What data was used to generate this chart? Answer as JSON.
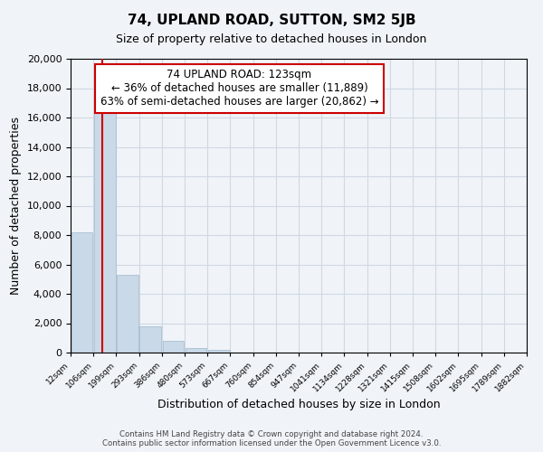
{
  "title": "74, UPLAND ROAD, SUTTON, SM2 5JB",
  "subtitle": "Size of property relative to detached houses in London",
  "xlabel": "Distribution of detached houses by size in London",
  "ylabel": "Number of detached properties",
  "bar_color": "#c9d9e8",
  "bar_edge_color": "#a0b8cc",
  "property_line_color": "#cc0000",
  "annotation_box_edge_color": "#cc0000",
  "annotation_box_face_color": "#ffffff",
  "grid_color": "#d0d8e4",
  "background_color": "#f0f4f8",
  "bin_edges": [
    "12sqm",
    "106sqm",
    "199sqm",
    "293sqm",
    "386sqm",
    "480sqm",
    "573sqm",
    "667sqm",
    "760sqm",
    "854sqm",
    "947sqm",
    "1041sqm",
    "1134sqm",
    "1228sqm",
    "1321sqm",
    "1415sqm",
    "1508sqm",
    "1602sqm",
    "1695sqm",
    "1789sqm",
    "1882sqm"
  ],
  "bar_heights": [
    8200,
    16700,
    5300,
    1800,
    800,
    300,
    200,
    0,
    0,
    0,
    0,
    0,
    0,
    0,
    0,
    0,
    0,
    0,
    0,
    0
  ],
  "ylim": [
    0,
    20000
  ],
  "yticks": [
    0,
    2000,
    4000,
    6000,
    8000,
    10000,
    12000,
    14000,
    16000,
    18000,
    20000
  ],
  "property_bin_index": 0.9,
  "annotation_title": "74 UPLAND ROAD: 123sqm",
  "annotation_line1": "← 36% of detached houses are smaller (11,889)",
  "annotation_line2": "63% of semi-detached houses are larger (20,862) →",
  "footer_line1": "Contains HM Land Registry data © Crown copyright and database right 2024.",
  "footer_line2": "Contains public sector information licensed under the Open Government Licence v3.0."
}
